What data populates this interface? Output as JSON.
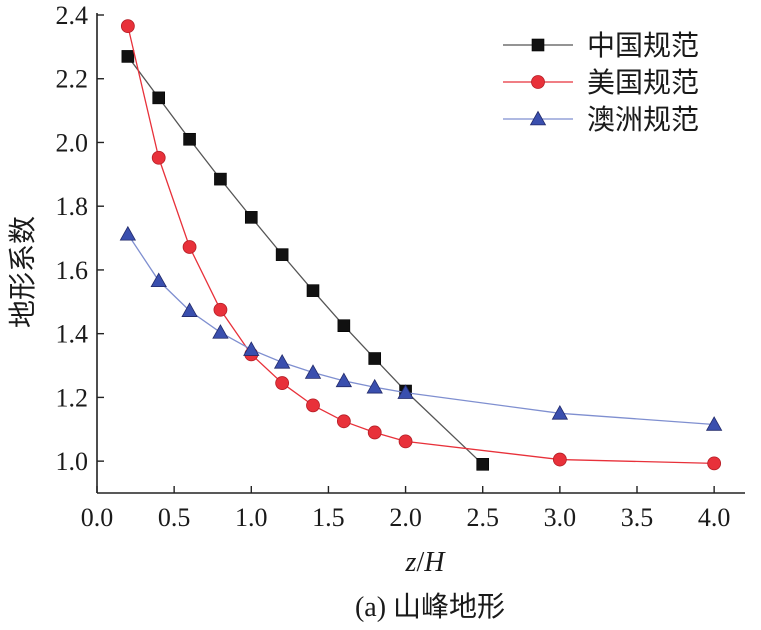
{
  "chart_data": {
    "type": "line",
    "caption": "(a) 山峰地形",
    "xlabel_var": "z",
    "xlabel_sep": "/",
    "xlabel_den": "H",
    "ylabel": "地形系数",
    "xlim": [
      0.0,
      4.2
    ],
    "ylim": [
      0.9,
      2.4
    ],
    "xticks": [
      0.0,
      0.5,
      1.0,
      1.5,
      2.0,
      2.5,
      3.0,
      3.5,
      4.0
    ],
    "yticks": [
      1.0,
      1.2,
      1.4,
      1.6,
      1.8,
      2.0,
      2.2,
      2.4
    ],
    "xtick_labels": [
      "0.0",
      "0.5",
      "1.0",
      "1.5",
      "2.0",
      "2.5",
      "3.0",
      "3.5",
      "4.0"
    ],
    "ytick_labels": [
      "1.0",
      "1.2",
      "1.4",
      "1.6",
      "1.8",
      "2.0",
      "2.2",
      "2.4"
    ],
    "grid": false,
    "legend_position": "top-right",
    "series": [
      {
        "name": "中国规范",
        "marker": "square",
        "color": "#111111",
        "line_color": "#555555",
        "x": [
          0.2,
          0.4,
          0.6,
          0.8,
          1.0,
          1.2,
          1.4,
          1.6,
          1.8,
          2.0,
          2.5
        ],
        "y": [
          2.27,
          2.14,
          2.01,
          1.885,
          1.765,
          1.648,
          1.535,
          1.425,
          1.322,
          1.22,
          0.99
        ]
      },
      {
        "name": "美国规范",
        "marker": "circle",
        "color": "#e8313a",
        "line_color": "#e8313a",
        "x": [
          0.2,
          0.4,
          0.6,
          0.8,
          1.0,
          1.2,
          1.4,
          1.6,
          1.8,
          2.0,
          3.0,
          4.0
        ],
        "y": [
          2.365,
          1.952,
          1.672,
          1.475,
          1.335,
          1.245,
          1.175,
          1.125,
          1.09,
          1.062,
          1.005,
          0.993
        ]
      },
      {
        "name": "澳洲规范",
        "marker": "triangle",
        "color": "#3a4fae",
        "line_color": "#7f8fd0",
        "x": [
          0.2,
          0.4,
          0.6,
          0.8,
          1.0,
          1.2,
          1.4,
          1.6,
          1.8,
          2.0,
          3.0,
          4.0
        ],
        "y": [
          1.712,
          1.566,
          1.472,
          1.404,
          1.35,
          1.31,
          1.278,
          1.252,
          1.232,
          1.215,
          1.15,
          1.115
        ]
      }
    ]
  }
}
